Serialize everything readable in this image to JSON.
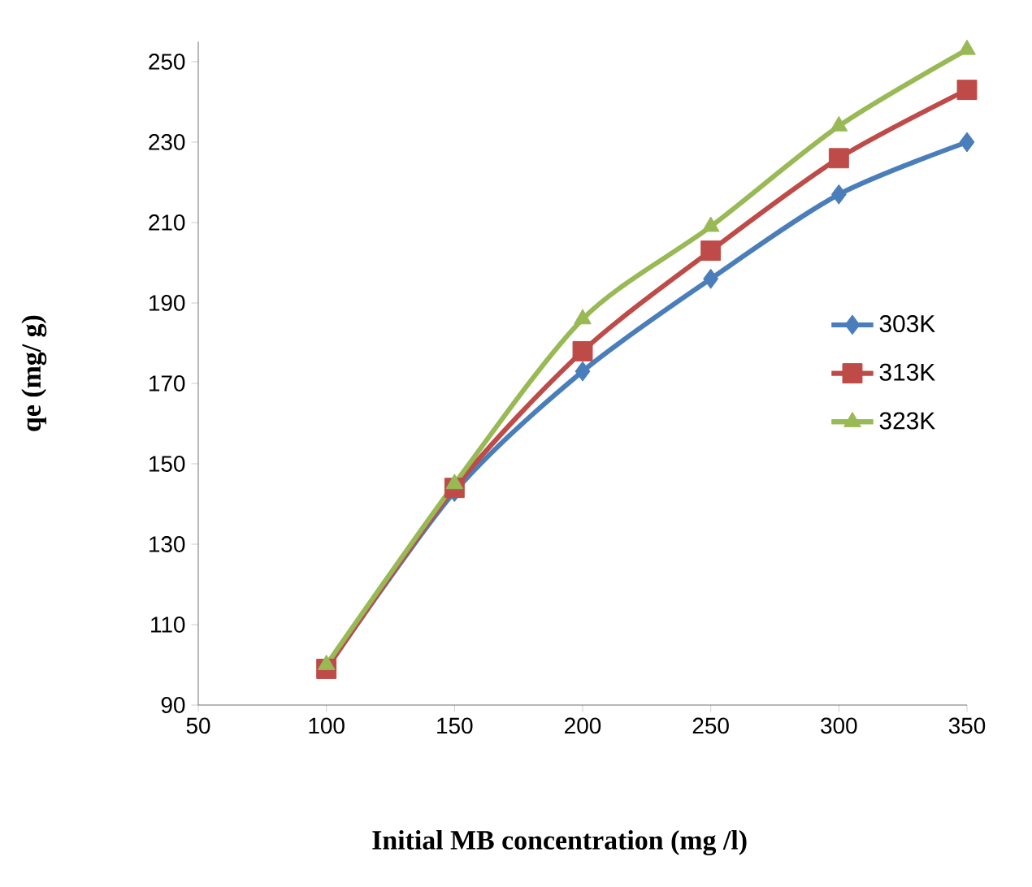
{
  "chart_data": {
    "type": "line",
    "xlabel": "Initial MB concentration (mg /l)",
    "ylabel": "qe (mg/ g)",
    "x": [
      100,
      150,
      200,
      250,
      300,
      350
    ],
    "series": [
      {
        "name": "303K",
        "color": "#4a7ebb",
        "marker": "diamond",
        "values": [
          99,
          143,
          173,
          196,
          217,
          230
        ]
      },
      {
        "name": "313K",
        "color": "#be4b48",
        "marker": "square",
        "values": [
          99,
          144,
          178,
          203,
          226,
          243
        ]
      },
      {
        "name": "323K",
        "color": "#98b954",
        "marker": "triangle",
        "values": [
          100,
          145,
          186,
          209,
          234,
          253
        ]
      }
    ],
    "xlim": [
      50,
      350
    ],
    "ylim": [
      90,
      255
    ],
    "xticks": [
      50,
      100,
      150,
      200,
      250,
      300,
      350
    ],
    "yticks": [
      90,
      110,
      130,
      150,
      170,
      190,
      210,
      230,
      250
    ],
    "grid": false,
    "legend": "right",
    "line_style": "solid"
  }
}
